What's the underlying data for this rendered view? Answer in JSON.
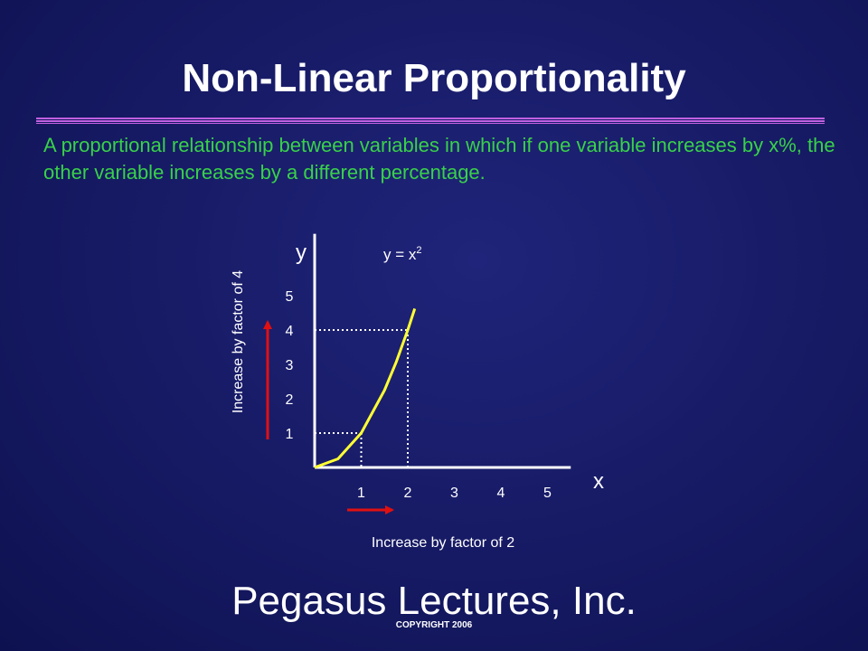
{
  "slide": {
    "title": "Non-Linear Proportionality",
    "definition": "A proportional relationship between variables in which if one variable increases by x%, the other variable increases by a different percentage.",
    "brand": "Pegasus Lectures, Inc.",
    "copyright": "COPYRIGHT 2006"
  },
  "chart_data": {
    "type": "line",
    "xlabel": "x",
    "ylabel": "y",
    "equation_base": "y = x",
    "equation_exponent": "2",
    "x_ticks": [
      "1",
      "2",
      "3",
      "4",
      "5"
    ],
    "y_ticks": [
      "1",
      "2",
      "3",
      "4",
      "5"
    ],
    "xlim": [
      0,
      5.5
    ],
    "ylim": [
      0,
      6.8
    ],
    "series": [
      {
        "x": [
          0,
          0.5,
          1,
          1.5,
          1.75,
          2,
          2.15
        ],
        "y": [
          0,
          0.25,
          1,
          2.25,
          3.06,
          4,
          4.62
        ],
        "color": "#ffff33"
      }
    ],
    "guides": [
      {
        "x": 1,
        "y": 1
      },
      {
        "x": 2,
        "y": 4
      }
    ],
    "annotations": {
      "x_arrow_label": "Increase by factor of 2",
      "y_arrow_label": "Increase by factor of 4",
      "arrow_color": "#e01010"
    },
    "grid": false,
    "legend": "none"
  }
}
